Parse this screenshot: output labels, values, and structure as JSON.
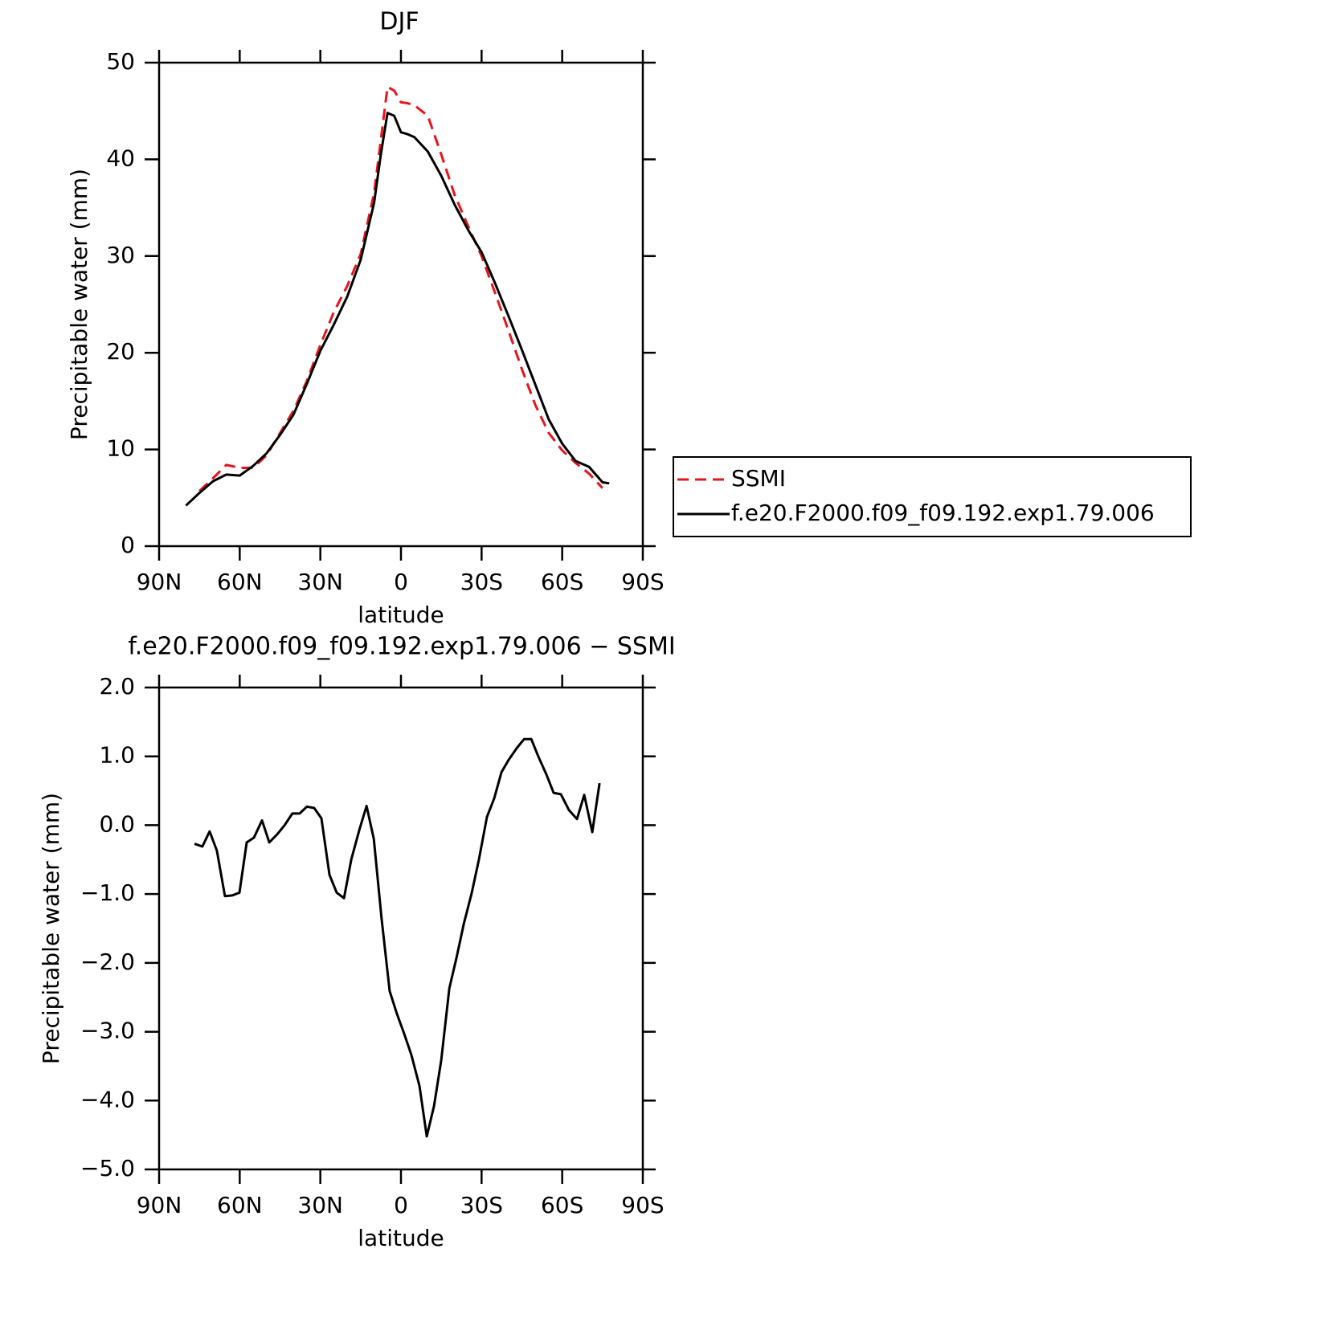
{
  "chart_data": [
    {
      "type": "line",
      "title": "DJF",
      "x_label": "latitude",
      "y_label": "Precipitable water (mm)",
      "xlim": [
        90,
        -90
      ],
      "xticks": [
        {
          "value": 90,
          "label": "90N"
        },
        {
          "value": 60,
          "label": "60N"
        },
        {
          "value": 30,
          "label": "30N"
        },
        0,
        {
          "value": -30,
          "label": "30S"
        },
        {
          "value": -60,
          "label": "60S"
        },
        {
          "value": -90,
          "label": "90S"
        }
      ],
      "ylim": [
        0,
        50
      ],
      "yticks": [
        0,
        10,
        20,
        30,
        40,
        50
      ],
      "legend": "right",
      "x": [
        80,
        75,
        70,
        65,
        60,
        55,
        50,
        45,
        40,
        35,
        30,
        25,
        20,
        15,
        10,
        7.5,
        5,
        2.5,
        0,
        -2.5,
        -5,
        -10,
        -15,
        -20,
        -25,
        -30,
        -35,
        -40,
        -45,
        -50,
        -55,
        -60,
        -65,
        -70,
        -75,
        -77.5
      ],
      "series": [
        {
          "name": "SSMI",
          "color": "#e8141a",
          "line_style": "dashed",
          "values": [
            null,
            5.7,
            7.0,
            8.4,
            8.1,
            8.1,
            9.4,
            11.7,
            14.0,
            17.1,
            20.8,
            24.2,
            26.9,
            30.2,
            36.5,
            42.0,
            47.5,
            47.1,
            45.9,
            45.8,
            45.6,
            44.5,
            40.5,
            36.3,
            33.1,
            30.0,
            26.2,
            22.3,
            18.3,
            14.6,
            11.7,
            9.9,
            8.6,
            7.5,
            6.0,
            null
          ]
        },
        {
          "name": "f.e20.F2000.f09_f09.192.exp1.79.006",
          "color": "#000000",
          "line_style": "solid",
          "values": [
            4.2,
            5.5,
            6.7,
            7.4,
            7.3,
            8.3,
            9.6,
            11.5,
            13.6,
            16.8,
            20.2,
            22.9,
            25.8,
            29.6,
            35.5,
            40.5,
            44.8,
            44.5,
            42.8,
            42.6,
            42.3,
            40.8,
            38.3,
            35.3,
            32.7,
            30.4,
            27.2,
            23.8,
            20.3,
            16.7,
            13.1,
            10.6,
            8.8,
            8.2,
            6.6,
            6.5
          ]
        }
      ]
    },
    {
      "type": "line",
      "title": "f.e20.F2000.f09_f09.192.exp1.79.006 − SSMI",
      "x_label": "latitude",
      "y_label": "Precipitable water (mm)",
      "xlim": [
        90,
        -90
      ],
      "xticks": [
        {
          "value": 90,
          "label": "90N"
        },
        {
          "value": 60,
          "label": "60N"
        },
        {
          "value": 30,
          "label": "30N"
        },
        0,
        {
          "value": -30,
          "label": "30S"
        },
        {
          "value": -60,
          "label": "60S"
        },
        {
          "value": -90,
          "label": "90S"
        }
      ],
      "ylim": [
        -5,
        2
      ],
      "yticks": [
        {
          "value": 2,
          "label": "2.0"
        },
        {
          "value": 1,
          "label": "1.0"
        },
        {
          "value": 0,
          "label": "0.0"
        },
        {
          "value": -1,
          "label": "−1.0"
        },
        {
          "value": -2,
          "label": "−2.0"
        },
        {
          "value": -3,
          "label": "−3.0"
        },
        {
          "value": -4,
          "label": "−4.0"
        },
        {
          "value": -5,
          "label": "−5.0"
        }
      ],
      "color": "#000000",
      "x": [
        76.8,
        73.9,
        71.2,
        68.5,
        65.5,
        62.8,
        60.1,
        57.4,
        54.7,
        51.7,
        49.0,
        46.0,
        43.3,
        40.4,
        37.7,
        35.0,
        32.3,
        29.6,
        26.6,
        23.9,
        21.2,
        18.5,
        15.5,
        12.8,
        10.1,
        7.2,
        4.2,
        1.5,
        -1.2,
        -3.9,
        -6.9,
        -9.6,
        -12.3,
        -15.0,
        -18.0,
        -20.7,
        -23.4,
        -26.3,
        -29.0,
        -32.0,
        -34.7,
        -37.4,
        -40.1,
        -43.1,
        -45.8,
        -48.5,
        -51.2,
        -54.2,
        -56.8,
        -59.5,
        -62.5,
        -65.5,
        -68.2,
        -71.2,
        -73.9
      ],
      "values": [
        -0.27,
        -0.31,
        -0.09,
        -0.37,
        -1.03,
        -1.02,
        -0.98,
        -0.25,
        -0.18,
        0.07,
        -0.25,
        -0.13,
        0.0,
        0.17,
        0.17,
        0.27,
        0.25,
        0.1,
        -0.72,
        -0.98,
        -1.06,
        -0.5,
        -0.07,
        0.28,
        -0.2,
        -1.36,
        -2.41,
        -2.74,
        -3.03,
        -3.34,
        -3.79,
        -4.52,
        -4.08,
        -3.41,
        -2.37,
        -1.92,
        -1.43,
        -0.99,
        -0.5,
        0.12,
        0.39,
        0.77,
        0.95,
        1.12,
        1.25,
        1.25,
        0.99,
        0.73,
        0.47,
        0.45,
        0.22,
        0.09,
        0.44,
        -0.1,
        0.61
      ]
    }
  ]
}
